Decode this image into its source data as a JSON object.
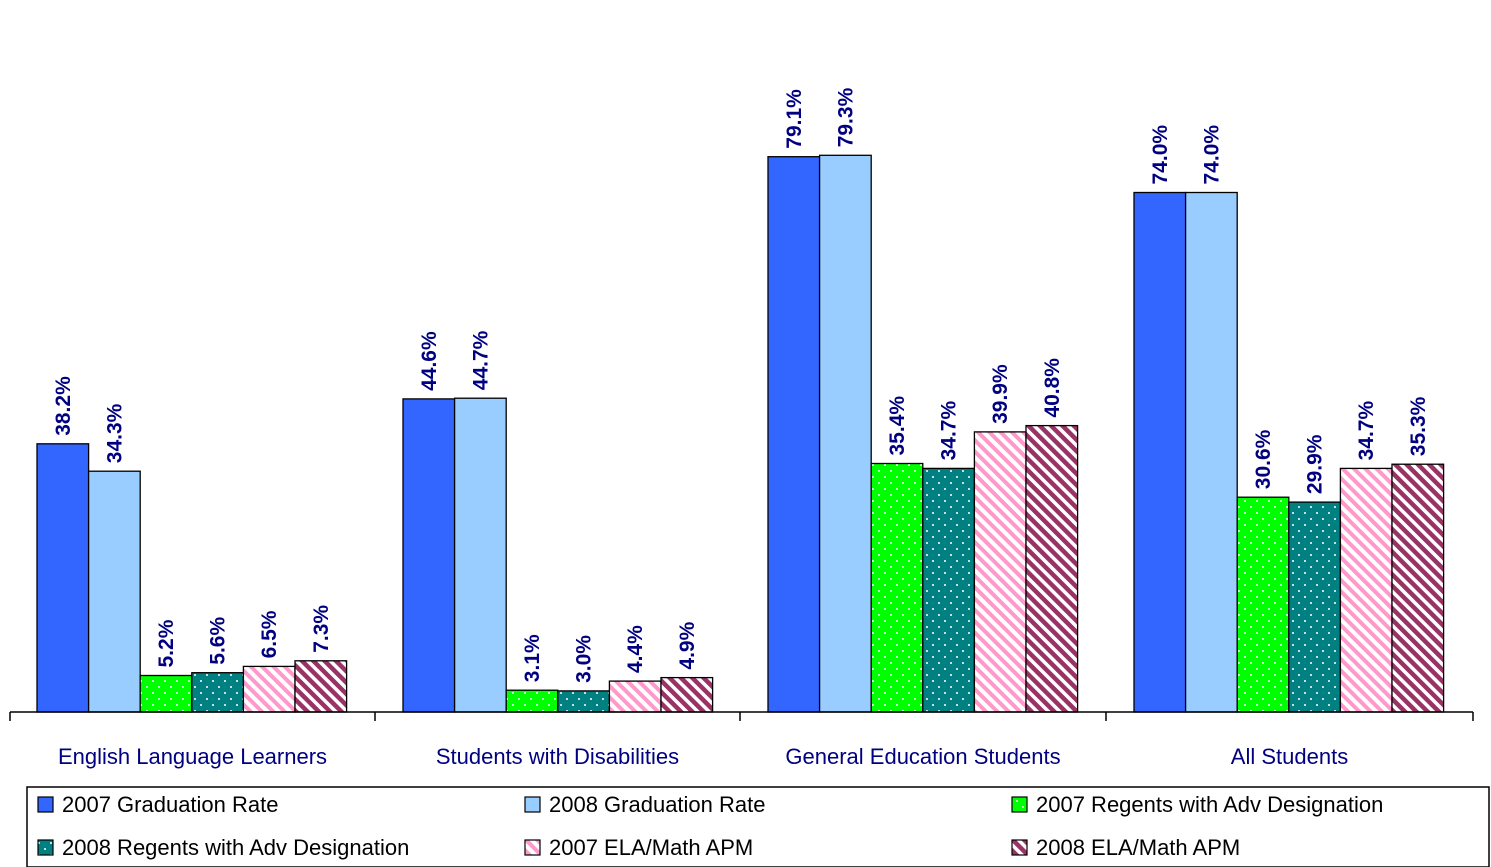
{
  "chart_data": {
    "type": "bar",
    "title": "",
    "xlabel": "",
    "ylabel": "",
    "ylim": [
      0,
      85
    ],
    "grid": false,
    "legend_position": "bottom",
    "categories": [
      "English Language Learners",
      "Students with Disabilities",
      "General Education Students",
      "All Students"
    ],
    "series": [
      {
        "name": "2007 Graduation Rate",
        "values": [
          38.2,
          44.6,
          79.1,
          74.0
        ],
        "labels": [
          "38.2%",
          "44.6%",
          "79.1%",
          "74.0%"
        ],
        "color": "#3366FF",
        "pattern": "solid"
      },
      {
        "name": "2008 Graduation Rate",
        "values": [
          34.3,
          44.7,
          79.3,
          74.0
        ],
        "labels": [
          "34.3%",
          "44.7%",
          "79.3%",
          "74.0%"
        ],
        "color": "#99CCFF",
        "pattern": "solid"
      },
      {
        "name": "2007 Regents with Adv Designation",
        "values": [
          5.2,
          3.1,
          35.4,
          30.6
        ],
        "labels": [
          "5.2%",
          "3.1%",
          "35.4%",
          "30.6%"
        ],
        "color": "#00FF00",
        "pattern": "dots"
      },
      {
        "name": "2008 Regents with Adv Designation",
        "values": [
          5.6,
          3.0,
          34.7,
          29.9
        ],
        "labels": [
          "5.6%",
          "3.0%",
          "34.7%",
          "29.9%"
        ],
        "color": "#008080",
        "pattern": "dots"
      },
      {
        "name": "2007 ELA/Math APM",
        "values": [
          6.5,
          4.4,
          39.9,
          34.7
        ],
        "labels": [
          "6.5%",
          "4.4%",
          "39.9%",
          "34.7%"
        ],
        "color": "#FF99CC",
        "pattern": "stripes"
      },
      {
        "name": "2008 ELA/Math APM",
        "values": [
          7.3,
          4.9,
          40.8,
          35.3
        ],
        "labels": [
          "7.3%",
          "4.9%",
          "40.8%",
          "35.3%"
        ],
        "color": "#993366",
        "pattern": "stripes"
      }
    ]
  }
}
